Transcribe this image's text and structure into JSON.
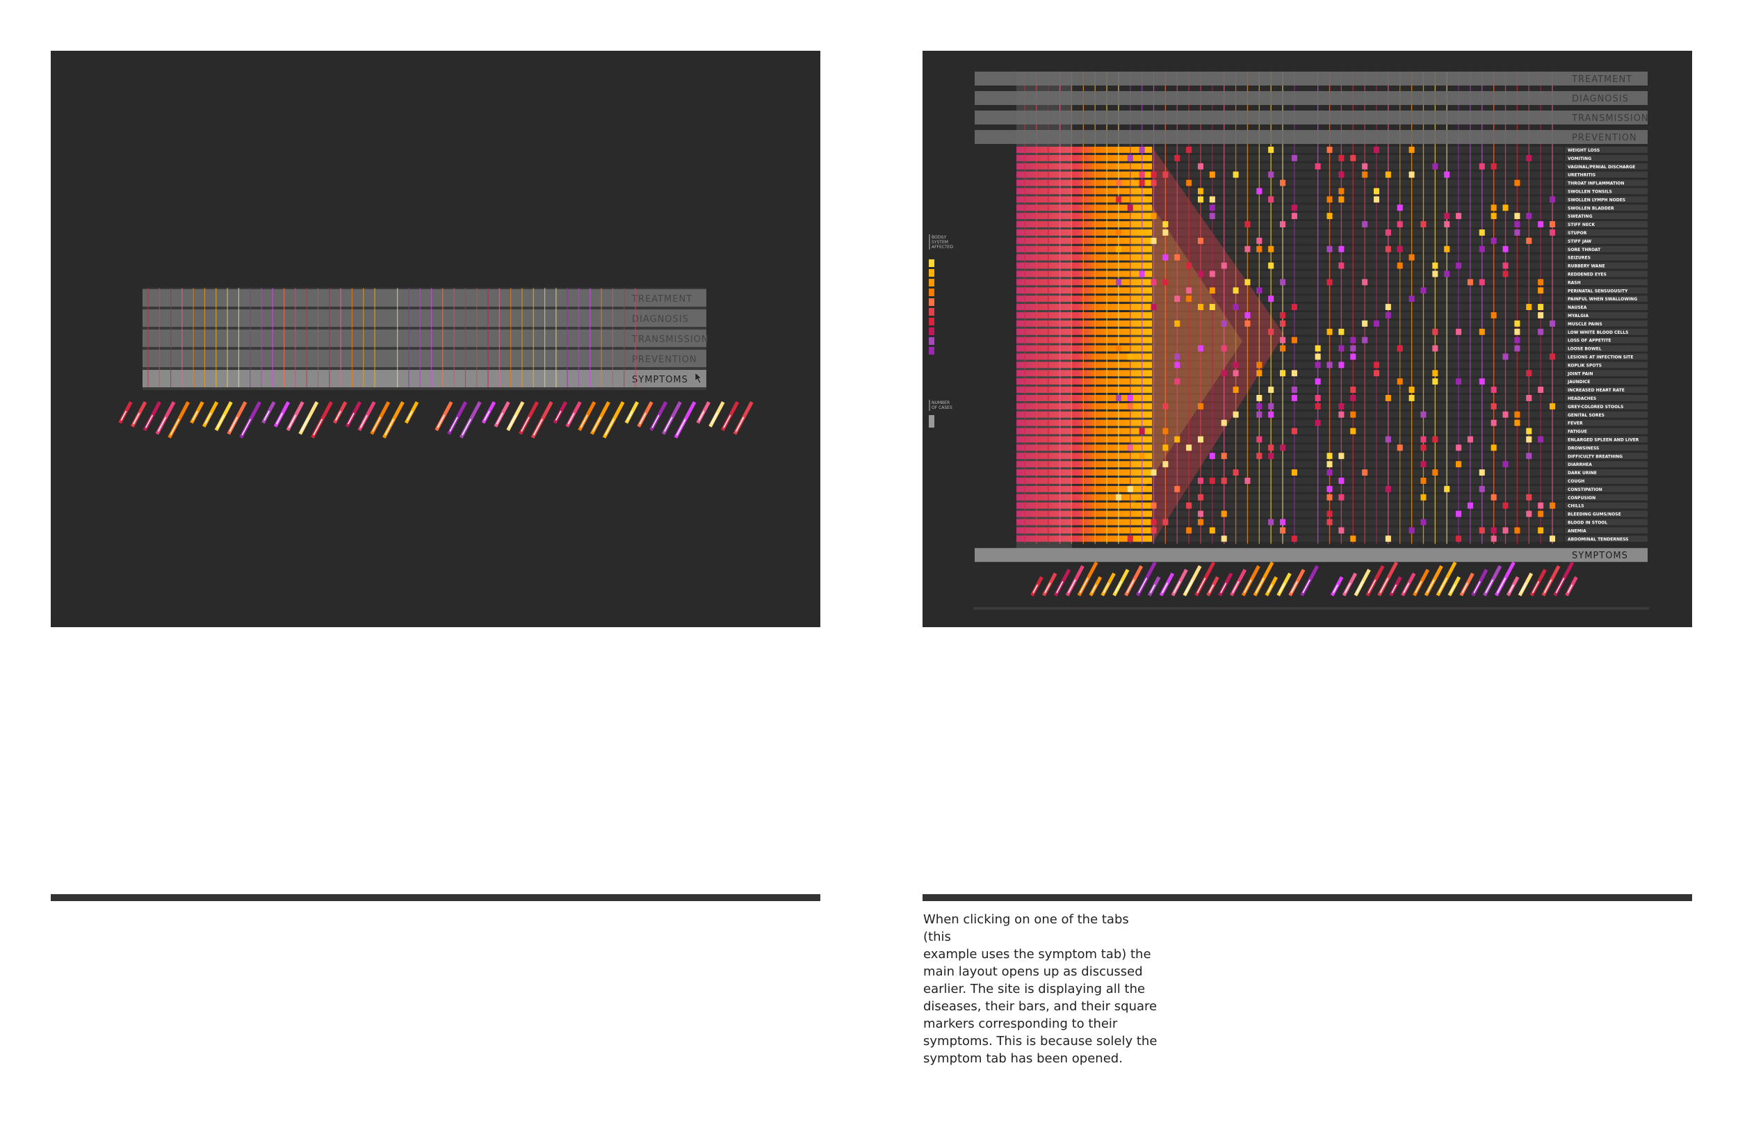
{
  "left_panel": {
    "tabs": [
      {
        "label": "TREATMENT"
      },
      {
        "label": "DIAGNOSIS"
      },
      {
        "label": "TRANSMISSION"
      },
      {
        "label": "PREVENTION"
      },
      {
        "label": "SYMPTOMS"
      }
    ]
  },
  "right_panel": {
    "tabs": [
      {
        "label": "TREATMENT"
      },
      {
        "label": "DIAGNOSIS"
      },
      {
        "label": "TRANSMISSION"
      },
      {
        "label": "PREVENTION"
      }
    ],
    "bottom_tab": "SYMPTOMS",
    "legend": {
      "body_system_label": [
        "BODILY",
        "SYSTEM",
        "AFFECTED"
      ],
      "cases_label": [
        "NUMBER",
        "OF CASES"
      ]
    },
    "symptoms": [
      "WEIGHT LOSS",
      "VOMITING",
      "VAGINAL/PENIAL DISCHARGE",
      "URETHRITIS",
      "THROAT INFLAMMATION",
      "SWOLLEN TONSILS",
      "SWOLLEN LYMPH NODES",
      "SWOLLEN BLADDER",
      "SWEATING",
      "STIFF NECK",
      "STUPOR",
      "STIFF JAW",
      "SORE THROAT",
      "SEIZURES",
      "RUBBERY WANE",
      "REDDENED EYES",
      "RASH",
      "PERINATAL SENSUOUSITY",
      "PAINFUL WHEN SWALLOWING",
      "NAUSEA",
      "MYALGIA",
      "MUSCLE PAINS",
      "LOW WHITE BLOOD CELLS",
      "LOSS OF APPETITE",
      "LOOSE BOWEL",
      "LESIONS AT INFECTION SITE",
      "KOPLIK SPOTS",
      "JOINT PAIN",
      "JAUNDICE",
      "INCREASED HEART RATE",
      "HEADACHES",
      "GREY-COLORED STOOLS",
      "GENITAL SORES",
      "FEVER",
      "FATIGUE",
      "ENLARGED SPLEEN AND LIVER",
      "DROWSINESS",
      "DIFFICULTY BREATHING",
      "DIARRHEA",
      "DARK URINE",
      "COUGH",
      "CONSTIPATION",
      "CONFUSION",
      "CHILLS",
      "BLEEDING GUMS/NOSE",
      "BLOOD IN STOOL",
      "ANEMIA",
      "ABDOMINAL TENDERNESS"
    ]
  },
  "caption": {
    "lines": [
      "When clicking on one of the tabs (this",
      "example uses the symptom tab) the",
      "main layout opens up as discussed",
      "earlier. The site is displaying all the",
      "diseases, their bars, and their square",
      "markers corresponding to their",
      "symptoms. This is because solely the",
      "symptom tab has been opened."
    ]
  },
  "colors": {
    "panel_bg": "#2a2a2a",
    "tab_bg": "#6d6d6d",
    "tab_text": "#3a3a3a",
    "palette": [
      "#d7263d",
      "#e8414e",
      "#c2185b",
      "#f06292",
      "#f57c00",
      "#ff9800",
      "#ffb300",
      "#fdd835",
      "#ffe082",
      "#9c27b0",
      "#ab47bc",
      "#e040fb",
      "#ff7043",
      "#ec407a"
    ]
  }
}
